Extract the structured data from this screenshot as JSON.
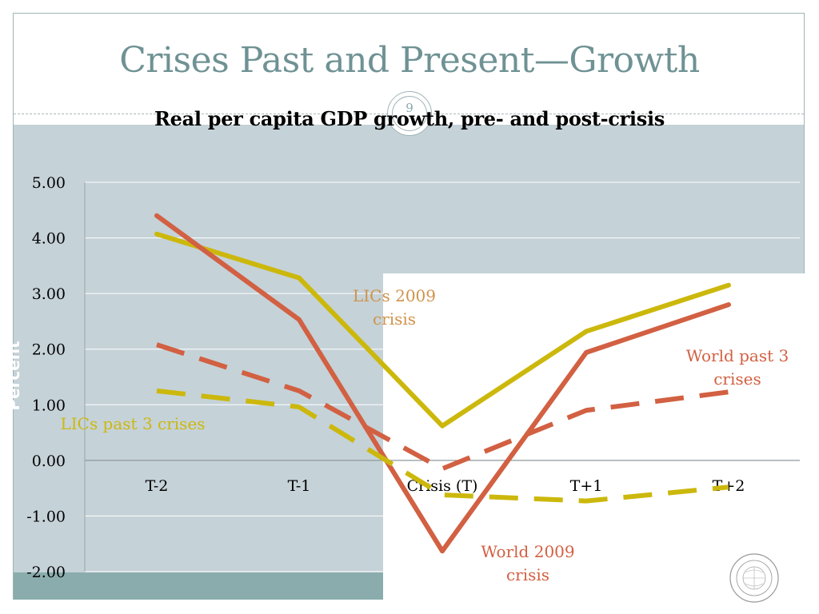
{
  "slide": {
    "title": "Crises Past and Present—Growth",
    "page_number": "9"
  },
  "colors": {
    "title": "#6f9294",
    "lics": "#ccb80c",
    "world": "#d26042",
    "lics_label": "#d0934a",
    "panel": "#c5d2d8",
    "band": "#8aacac"
  },
  "chart_data": {
    "type": "line",
    "title": "Real per capita GDP growth, pre- and post-crisis",
    "ylabel": "Percent",
    "categories": [
      "T-2",
      "T-1",
      "Crisis (T)",
      "T+1",
      "T+2"
    ],
    "ylim": [
      -2.0,
      5.0
    ],
    "y_ticks": [
      "5.00",
      "4.00",
      "3.00",
      "2.00",
      "1.00",
      "0.00",
      "-1.00",
      "-2.00"
    ],
    "grid": true,
    "series": [
      {
        "name": "LICs 2009 crisis",
        "style": "solid",
        "color": "#ccb80c",
        "values": [
          4.07,
          3.28,
          0.62,
          2.32,
          3.15
        ]
      },
      {
        "name": "World 2009 crisis",
        "style": "solid",
        "color": "#d26042",
        "values": [
          4.4,
          2.53,
          -1.63,
          1.94,
          2.8
        ]
      },
      {
        "name": "World past 3 crises",
        "style": "dashed",
        "color": "#d26042",
        "values": [
          2.08,
          1.25,
          -0.15,
          0.9,
          1.23
        ]
      },
      {
        "name": "LICs past 3 crises",
        "style": "dashed",
        "color": "#ccb80c",
        "values": [
          1.25,
          0.96,
          -0.62,
          -0.73,
          -0.48
        ]
      }
    ],
    "annotations": [
      {
        "text_lines": [
          "LICs 2009",
          "crisis"
        ],
        "color": "#d0934a"
      },
      {
        "text_lines": [
          "World past 3",
          "crises"
        ],
        "color": "#d26042"
      },
      {
        "text_lines": [
          "LICs past 3 crises"
        ],
        "color": "#ccb80c"
      },
      {
        "text_lines": [
          "World 2009",
          "crisis"
        ],
        "color": "#d26042"
      }
    ]
  },
  "seal": {
    "text": "INTERNATIONAL MONETARY FUND"
  }
}
